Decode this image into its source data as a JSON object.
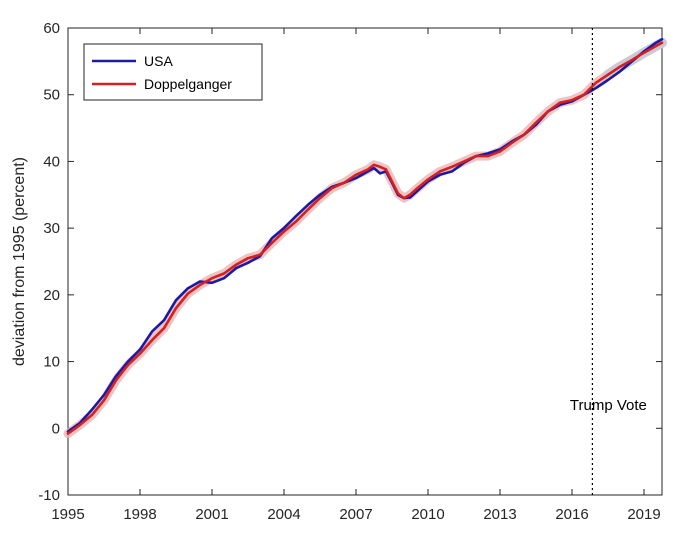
{
  "chart_data": {
    "type": "line",
    "title": "",
    "xlabel": "",
    "ylabel": "deviation from 1995 (percent)",
    "xlim": [
      1995,
      2019.75
    ],
    "ylim": [
      -10,
      60
    ],
    "xticks": [
      1995,
      1998,
      2001,
      2004,
      2007,
      2010,
      2013,
      2016,
      2019
    ],
    "yticks": [
      -10,
      0,
      10,
      20,
      30,
      40,
      50,
      60
    ],
    "grid": false,
    "legend_position": "top-left",
    "annotations": [
      {
        "text": "Trump Vote",
        "x": 2016.85
      }
    ],
    "colors": {
      "usa": "#1a1aa6",
      "doppelganger": "#d42020",
      "band": "#e8b4b4",
      "band_tail": "#c9c9d6"
    },
    "series": [
      {
        "name": "USA",
        "x": [
          1995.0,
          1995.5,
          1996.0,
          1996.5,
          1997.0,
          1997.5,
          1998.0,
          1998.5,
          1999.0,
          1999.5,
          2000.0,
          2000.5,
          2001.0,
          2001.5,
          2002.0,
          2002.5,
          2003.0,
          2003.5,
          2004.0,
          2004.5,
          2005.0,
          2005.5,
          2006.0,
          2006.5,
          2007.0,
          2007.5,
          2007.75,
          2008.0,
          2008.25,
          2008.5,
          2008.75,
          2009.0,
          2009.25,
          2009.5,
          2010.0,
          2010.5,
          2011.0,
          2011.5,
          2012.0,
          2012.5,
          2013.0,
          2013.5,
          2014.0,
          2014.5,
          2015.0,
          2015.5,
          2016.0,
          2016.5,
          2017.0,
          2017.5,
          2018.0,
          2018.5,
          2019.0,
          2019.5,
          2019.75
        ],
        "values": [
          -0.5,
          0.8,
          2.8,
          5.0,
          7.8,
          10.0,
          11.8,
          14.5,
          16.2,
          19.2,
          21.0,
          22.0,
          21.8,
          22.5,
          24.0,
          24.8,
          25.8,
          28.5,
          30.0,
          31.8,
          33.5,
          35.0,
          36.2,
          36.8,
          37.5,
          38.5,
          39.0,
          38.2,
          38.5,
          36.8,
          35.0,
          34.5,
          34.6,
          35.4,
          37.0,
          38.0,
          38.5,
          39.8,
          40.8,
          41.2,
          41.8,
          43.0,
          44.0,
          45.5,
          47.5,
          48.5,
          49.0,
          50.0,
          51.0,
          52.2,
          53.5,
          55.0,
          56.5,
          57.8,
          58.3
        ]
      },
      {
        "name": "Doppelganger",
        "x": [
          1995.0,
          1995.5,
          1996.0,
          1996.5,
          1997.0,
          1997.5,
          1998.0,
          1998.5,
          1999.0,
          1999.5,
          2000.0,
          2000.5,
          2001.0,
          2001.5,
          2002.0,
          2002.5,
          2003.0,
          2003.5,
          2004.0,
          2004.5,
          2005.0,
          2005.5,
          2006.0,
          2006.5,
          2007.0,
          2007.5,
          2007.75,
          2008.0,
          2008.25,
          2008.5,
          2008.75,
          2009.0,
          2009.25,
          2009.5,
          2010.0,
          2010.5,
          2011.0,
          2011.5,
          2012.0,
          2012.5,
          2013.0,
          2013.5,
          2014.0,
          2014.5,
          2015.0,
          2015.5,
          2016.0,
          2016.5,
          2017.0,
          2017.5,
          2018.0,
          2018.5,
          2019.0,
          2019.5,
          2019.75
        ],
        "values": [
          -0.8,
          0.5,
          2.0,
          4.2,
          7.2,
          9.5,
          11.2,
          13.2,
          15.0,
          18.0,
          20.2,
          21.5,
          22.5,
          23.2,
          24.5,
          25.5,
          26.0,
          27.8,
          29.5,
          31.0,
          32.8,
          34.5,
          36.0,
          36.8,
          38.0,
          38.8,
          39.5,
          39.2,
          38.8,
          37.0,
          35.2,
          34.5,
          35.0,
          35.8,
          37.3,
          38.5,
          39.2,
          40.0,
          40.8,
          40.8,
          41.5,
          42.8,
          44.0,
          45.8,
          47.5,
          48.8,
          49.2,
          50.0,
          51.8,
          53.0,
          54.2,
          55.2,
          56.3,
          57.3,
          57.8
        ]
      }
    ]
  }
}
